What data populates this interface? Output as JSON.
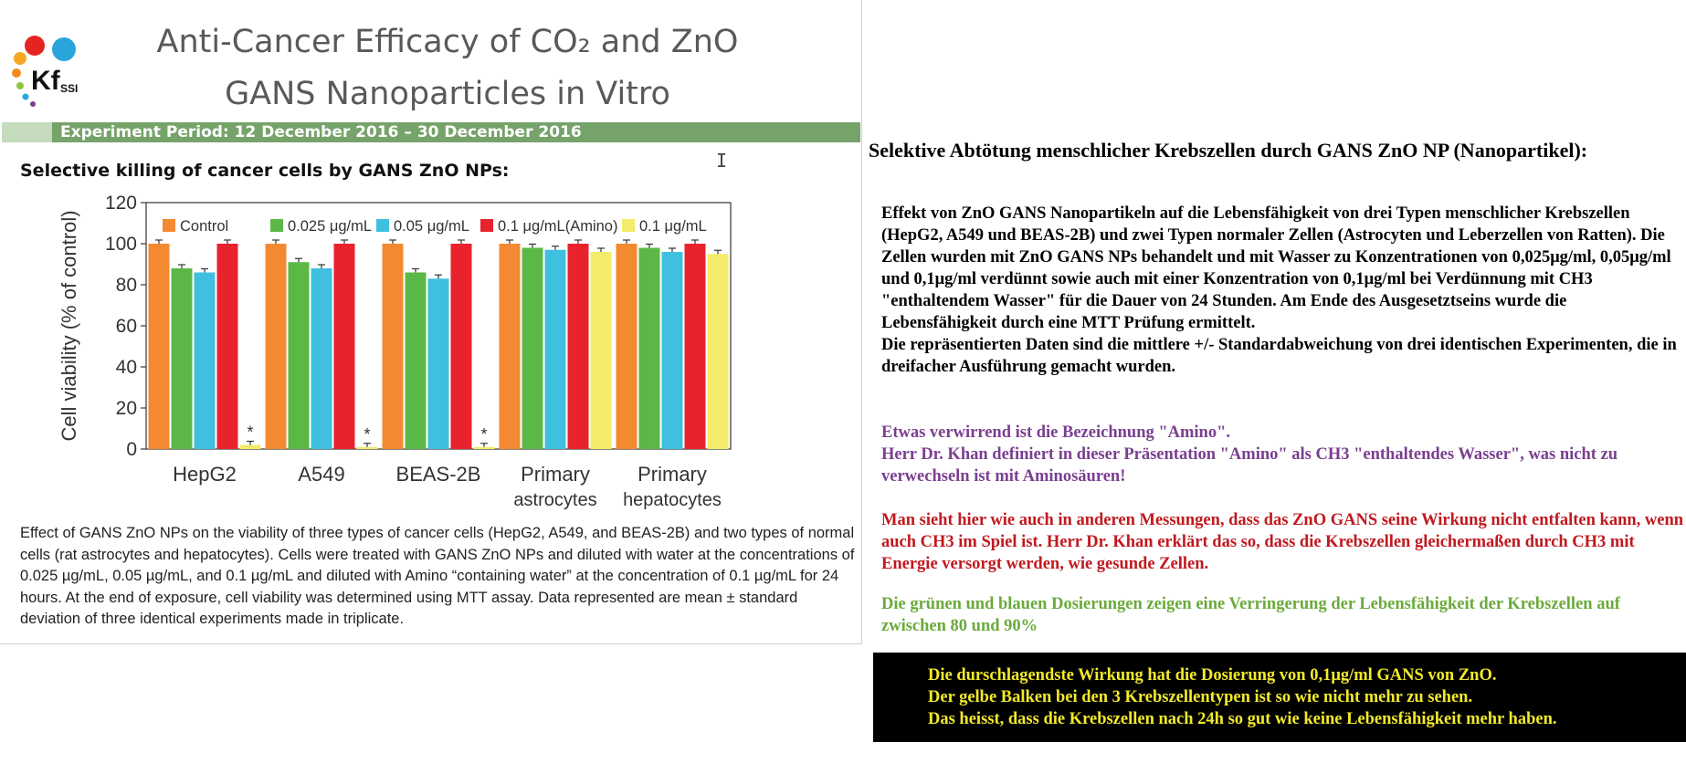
{
  "slide": {
    "title_line1": "Anti-Cancer Efficacy of CO₂ and ZnO",
    "title_line2": "GANS Nanoparticles in Vitro",
    "logo_text": "Kf",
    "logo_subtext": "SSI",
    "period": "Experiment Period: 12 December 2016 – 30 December 2016",
    "chart_heading": "Selective killing of cancer cells by GANS ZnO NPs:",
    "caption": "Effect of GANS ZnO NPs on the viability of three types of cancer cells (HepG2, A549, and BEAS-2B) and two types of normal cells (rat astrocytes and hepatocytes). Cells were treated with GANS ZnO NPs and diluted with water at the concentrations of 0.025 µg/mL, 0.05 µg/mL, and 0.1 µg/mL and diluted with Amino “containing water” at the concentration of 0.1 µg/mL for 24 hours.  At the end of exposure, cell viability was determined using MTT assay. Data represented are mean ± standard deviation of three identical experiments made in triplicate."
  },
  "chart_data": {
    "type": "bar",
    "ylabel": "Cell viability (% of control)",
    "ylim": [
      0,
      120
    ],
    "yticks": [
      0,
      20,
      40,
      60,
      80,
      100,
      120
    ],
    "categories": [
      "HepG2",
      "A549",
      "BEAS-2B",
      "Primary astrocytes",
      "Primary hepatocytes"
    ],
    "series": [
      {
        "name": "Control",
        "color": "#f38a31",
        "values": [
          100,
          100,
          100,
          100,
          100
        ]
      },
      {
        "name": "0.025 μg/mL",
        "color": "#5cb846",
        "values": [
          88,
          91,
          86,
          98,
          98
        ]
      },
      {
        "name": "0.05 μg/mL",
        "color": "#40c0e0",
        "values": [
          86,
          88,
          83,
          97,
          96
        ]
      },
      {
        "name": "0.1 μg/mL(Amino)",
        "color": "#e8232e",
        "values": [
          100,
          100,
          100,
          100,
          100
        ]
      },
      {
        "name": "0.1 μg/mL",
        "color": "#f2ec6a",
        "values": [
          2,
          1,
          1,
          96,
          95
        ]
      }
    ],
    "annotations": [
      "*",
      "*",
      "*"
    ],
    "legend": "top"
  },
  "german": {
    "title": "Selektive Abtötung menschlicher Krebszellen durch GANS ZnO NP (Nanopartikel):",
    "para1": "Effekt von ZnO GANS Nanopartikeln auf die Lebensfähigkeit von drei Typen menschlicher Krebszellen (HepG2, A549 und BEAS-2B) und zwei Typen normaler Zellen (Astrocyten und Leberzellen von Ratten). Die Zellen wurden mit ZnO GANS NPs behandelt und mit Wasser zu Konzentrationen von 0,025μg/ml, 0,05μg/ml und 0,1μg/ml verdünnt sowie auch mit einer Konzentration von 0,1μg/ml bei Verdünnung mit CH3 \"enthaltendem Wasser\" für die Dauer von 24 Stunden. Am Ende des Ausgesetztseins wurde die Lebensfähigkeit durch eine MTT Prüfung ermittelt.",
    "para2": "Die repräsentierten Daten sind die mittlere +/- Standardabweichung von drei identischen Experimenten, die in dreifacher Ausführung gemacht wurden.",
    "purple_line1": "Etwas verwirrend ist die Bezeichnung \"Amino\".",
    "purple_line2": "Herr Dr. Khan definiert in dieser Präsentation \"Amino\" als CH3 \"enthaltendes Wasser\", was nicht zu verwechseln ist mit Aminosäuren!",
    "red_para": "Man sieht hier wie auch in anderen Messungen, dass das ZnO GANS seine Wirkung nicht entfalten kann, wenn auch CH3 im Spiel ist. Herr Dr. Khan erklärt das so, dass die Krebszellen gleichermaßen durch CH3 mit Energie versorgt werden, wie gesunde Zellen.",
    "green_para": "Die grünen und blauen Dosierungen zeigen eine Verringerung der Lebensfähigkeit der Krebszellen auf zwischen 80 und 90%",
    "box_line1": "Die durschlagendste Wirkung hat die Dosierung von 0,1μg/ml GANS von ZnO.",
    "box_line2": "Der gelbe Balken bei den 3 Krebszellentypen ist so wie nicht mehr zu sehen.",
    "box_line3": "Das heisst, dass die Krebszellen nach 24h so gut wie keine Lebensfähigkeit mehr haben."
  },
  "colors": {
    "period_bar": "#76a36a",
    "purple": "#7a3f8f",
    "red": "#c0191f",
    "green": "#6aaa3a",
    "box_text": "#f2ea2c"
  }
}
